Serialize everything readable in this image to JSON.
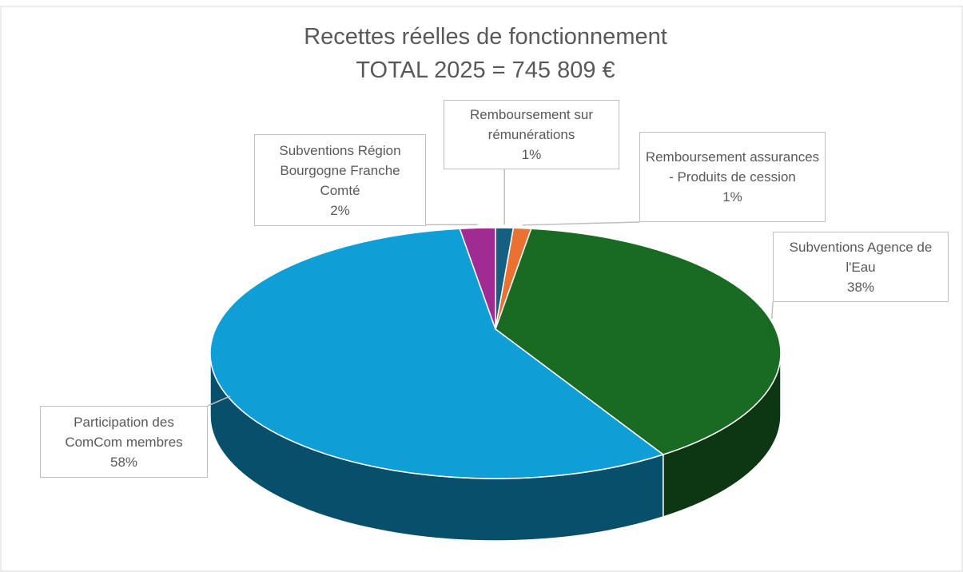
{
  "chart_data": {
    "type": "pie3d",
    "title": "Recettes réelles de fonctionnement",
    "subtitle": "TOTAL 2025 = 745 809 €",
    "categories": [
      "Remboursement sur rémunérations",
      "Remboursement assurances - Produits de cession",
      "Subventions Agence de l'Eau",
      "Participation des ComCom membres",
      "Subventions Région Bourgogne Franche Comté"
    ],
    "values": [
      1,
      1,
      38,
      58,
      2
    ],
    "value_labels": [
      "1%",
      "1%",
      "38%",
      "58%",
      "2%"
    ],
    "colors": [
      "#156082",
      "#e97132",
      "#196b24",
      "#0f9ed5",
      "#a02b93"
    ]
  }
}
